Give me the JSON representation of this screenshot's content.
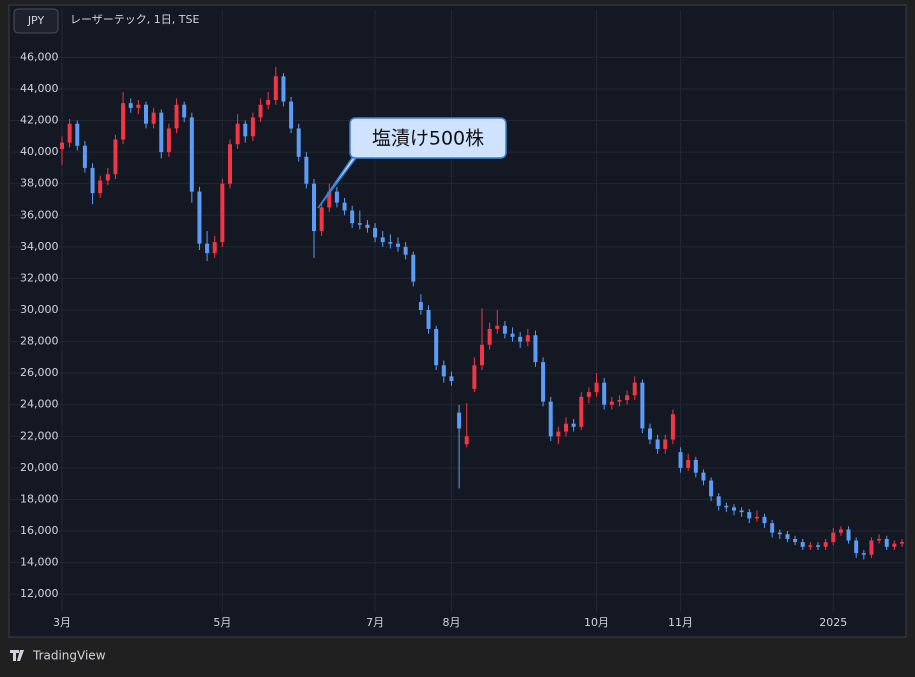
{
  "chart_data": {
    "type": "candlestick",
    "currency": "JPY",
    "title": "レーザーテック, 1日, TSE",
    "annotation": "塩漬け500株",
    "up_color": "#f23645",
    "down_color": "#5b9cf6",
    "grid": true,
    "ylim": [
      11000,
      47100
    ],
    "yticks": [
      {
        "value": 12000,
        "label": "12,000"
      },
      {
        "value": 14000,
        "label": "14,000"
      },
      {
        "value": 16000,
        "label": "16,000"
      },
      {
        "value": 18000,
        "label": "18,000"
      },
      {
        "value": 20000,
        "label": "20,000"
      },
      {
        "value": 22000,
        "label": "22,000"
      },
      {
        "value": 24000,
        "label": "24,000"
      },
      {
        "value": 26000,
        "label": "26,000"
      },
      {
        "value": 28000,
        "label": "28,000"
      },
      {
        "value": 30000,
        "label": "30,000"
      },
      {
        "value": 32000,
        "label": "32,000"
      },
      {
        "value": 34000,
        "label": "34,000"
      },
      {
        "value": 36000,
        "label": "36,000"
      },
      {
        "value": 38000,
        "label": "38,000"
      },
      {
        "value": 40000,
        "label": "40,000"
      },
      {
        "value": 42000,
        "label": "42,000"
      },
      {
        "value": 44000,
        "label": "44,000"
      },
      {
        "value": 46000,
        "label": "46,000"
      }
    ],
    "categories": [
      "3月",
      null,
      null,
      null,
      null,
      null,
      null,
      null,
      null,
      null,
      null,
      null,
      null,
      null,
      null,
      null,
      null,
      null,
      null,
      null,
      null,
      "5月",
      null,
      null,
      null,
      null,
      null,
      null,
      null,
      null,
      null,
      null,
      null,
      null,
      null,
      null,
      null,
      null,
      null,
      null,
      null,
      "7月",
      null,
      null,
      null,
      null,
      null,
      null,
      null,
      null,
      null,
      "8月",
      null,
      null,
      null,
      null,
      null,
      null,
      null,
      null,
      null,
      null,
      null,
      null,
      null,
      null,
      null,
      null,
      null,
      null,
      "10月",
      null,
      null,
      null,
      null,
      null,
      null,
      null,
      null,
      null,
      null,
      "11月",
      null,
      null,
      null,
      null,
      null,
      null,
      null,
      null,
      null,
      null,
      null,
      null,
      null,
      null,
      null,
      null,
      null,
      null,
      null,
      "2025",
      null,
      null,
      null,
      null,
      null,
      null,
      null,
      null,
      null
    ],
    "open": [
      40200,
      40600,
      41800,
      40400,
      39000,
      37400,
      38200,
      38600,
      40800,
      43100,
      42800,
      43000,
      41800,
      42500,
      40000,
      41500,
      43000,
      42200,
      37500,
      34200,
      33600,
      34300,
      38000,
      40500,
      41800,
      41000,
      42200,
      43000,
      43300,
      44800,
      43200,
      41500,
      39700,
      38000,
      35000,
      36500,
      37500,
      36800,
      36300,
      35500,
      35400,
      35200,
      34600,
      34300,
      34200,
      34000,
      33500,
      30500,
      30000,
      28800,
      26500,
      25800,
      23500,
      21500,
      25000,
      26500,
      27800,
      28800,
      29000,
      28500,
      28300,
      28000,
      28400,
      26700,
      24200,
      22000,
      22300,
      22800,
      22600,
      24500,
      24800,
      25400,
      24000,
      24200,
      24300,
      24600,
      25400,
      22500,
      21800,
      21200,
      21800,
      21000,
      20000,
      20500,
      19700,
      19200,
      18200,
      17600,
      17500,
      17300,
      17200,
      16800,
      16900,
      16500,
      15900,
      15800,
      15500,
      15300,
      15000,
      15100,
      15000,
      15300,
      15900,
      16100,
      15400,
      14600,
      14500,
      15400,
      15500,
      15000,
      15200
    ],
    "high": [
      41000,
      42100,
      42000,
      40700,
      39300,
      38500,
      39000,
      41100,
      43800,
      43400,
      43300,
      43200,
      42800,
      42700,
      41800,
      43400,
      43200,
      42500,
      37800,
      35000,
      34700,
      38300,
      40800,
      42400,
      42000,
      42500,
      43400,
      43800,
      45400,
      45000,
      43500,
      41800,
      40000,
      38300,
      36800,
      38000,
      37800,
      37100,
      36600,
      36300,
      35700,
      35500,
      35000,
      34800,
      34600,
      34300,
      33700,
      31000,
      30300,
      29000,
      26800,
      26100,
      24000,
      24100,
      27000,
      30100,
      29200,
      30000,
      29300,
      28900,
      28600,
      28800,
      28700,
      27000,
      24500,
      22600,
      23200,
      23100,
      24800,
      25100,
      26000,
      25700,
      24500,
      24600,
      24900,
      25800,
      25600,
      22800,
      22100,
      22100,
      23700,
      21300,
      20900,
      20700,
      19900,
      19400,
      18400,
      17800,
      17700,
      17500,
      17400,
      17300,
      17100,
      16700,
      16100,
      16000,
      15700,
      15500,
      15300,
      15300,
      15500,
      16200,
      16300,
      16300,
      15600,
      14800,
      15600,
      15800,
      15700,
      15400,
      15500
    ],
    "low": [
      39200,
      40300,
      40100,
      38700,
      36700,
      37100,
      37900,
      38300,
      40500,
      42500,
      42400,
      41500,
      41500,
      39600,
      39700,
      41200,
      41900,
      36800,
      33800,
      33100,
      33300,
      34000,
      37700,
      40200,
      40600,
      40700,
      41900,
      42700,
      43000,
      42900,
      41200,
      39400,
      37700,
      33300,
      34700,
      36200,
      36500,
      36000,
      35200,
      35100,
      34900,
      34300,
      34000,
      33900,
      33700,
      33200,
      31500,
      29700,
      28500,
      26200,
      25400,
      25200,
      18700,
      21300,
      24800,
      26200,
      27500,
      28500,
      28200,
      28000,
      27600,
      27700,
      26400,
      23900,
      21700,
      21500,
      22000,
      22300,
      22400,
      24100,
      24500,
      23700,
      23700,
      23900,
      24000,
      24300,
      22200,
      21500,
      20900,
      20900,
      21500,
      19700,
      19800,
      19400,
      18900,
      17900,
      17300,
      17200,
      17000,
      16900,
      16500,
      16600,
      16200,
      15600,
      15500,
      15300,
      15100,
      14800,
      14800,
      14800,
      14800,
      15100,
      15700,
      15200,
      14300,
      14200,
      14300,
      15200,
      14800,
      14800,
      15000
    ],
    "close": [
      40600,
      41800,
      40400,
      39000,
      37400,
      38200,
      38600,
      40800,
      43100,
      42800,
      43000,
      41800,
      42500,
      40000,
      41500,
      43000,
      42200,
      37500,
      34200,
      33600,
      34300,
      38000,
      40500,
      41800,
      41000,
      42200,
      43000,
      43300,
      44800,
      43200,
      41500,
      39700,
      38000,
      35000,
      36500,
      37500,
      36800,
      36300,
      35500,
      35400,
      35200,
      34600,
      34300,
      34200,
      34000,
      33500,
      31800,
      30000,
      28800,
      26500,
      25800,
      25500,
      22500,
      22000,
      26500,
      27800,
      28800,
      29000,
      28500,
      28300,
      28000,
      28400,
      26700,
      24200,
      22000,
      22300,
      22800,
      22600,
      24500,
      24800,
      25400,
      24000,
      24200,
      24300,
      24600,
      25400,
      22500,
      21800,
      21200,
      21800,
      23400,
      20000,
      20500,
      19700,
      19200,
      18200,
      17600,
      17500,
      17300,
      17200,
      16800,
      16900,
      16500,
      15900,
      15800,
      15500,
      15300,
      15000,
      15100,
      15000,
      15300,
      15900,
      16100,
      15400,
      14600,
      14500,
      15400,
      15500,
      15000,
      15200,
      15300
    ]
  },
  "footer": {
    "brand": "TradingView"
  }
}
